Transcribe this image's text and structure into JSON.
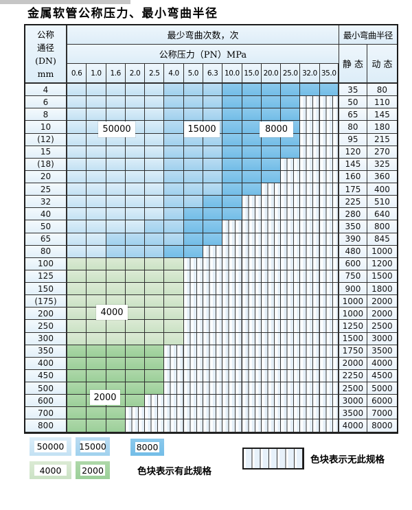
{
  "page": {
    "title": "金属软管公称压力、最小弯曲半径"
  },
  "table": {
    "corner_header": [
      "公称",
      "通径",
      "(DN)",
      "mm"
    ],
    "bend_times_header": "最少弯曲次数，次",
    "bend_radius_header": "最小弯曲半径",
    "pressure_header": "公称压力（PN）MPa",
    "static_header": "静 态",
    "dynamic_header": "动 态",
    "pressure_columns": [
      "0.6",
      "1.0",
      "1.6",
      "2.0",
      "2.5",
      "4.0",
      "5.0",
      "6.3",
      "10.0",
      "15.0",
      "20.0",
      "25.0",
      "32.0",
      "35.0"
    ],
    "zone_codes": {
      "L": "cycles-50000-light-blue",
      "M": "cycles-15000-medium-blue",
      "D": "cycles-8000-dark-blue",
      "g": "cycles-4000-light-green",
      "G": "cycles-2000-dark-green",
      ".": "no-spec-hatched"
    },
    "rows": [
      {
        "dn": "4",
        "static": "35",
        "dynamic": "80",
        "zones": "LLLLLMMMDDDDDD"
      },
      {
        "dn": "6",
        "static": "50",
        "dynamic": "110",
        "zones": "LLLLLMMMDDDD.."
      },
      {
        "dn": "8",
        "static": "65",
        "dynamic": "145",
        "zones": "LLLLLMMMDDDD.."
      },
      {
        "dn": "10",
        "static": "80",
        "dynamic": "180",
        "zones": "LLLLLMMMDDDD.."
      },
      {
        "dn": "(12)",
        "static": "95",
        "dynamic": "215",
        "zones": "LLLLLMMMDDDD.."
      },
      {
        "dn": "15",
        "static": "120",
        "dynamic": "270",
        "zones": "LLLLLMMMDDDD.."
      },
      {
        "dn": "(18)",
        "static": "145",
        "dynamic": "325",
        "zones": "LLLLLMMMDDD..."
      },
      {
        "dn": "20",
        "static": "160",
        "dynamic": "360",
        "zones": "LLLLLMMMDDD..."
      },
      {
        "dn": "25",
        "static": "175",
        "dynamic": "400",
        "zones": "LLLLLMMMDD...."
      },
      {
        "dn": "32",
        "static": "225",
        "dynamic": "510",
        "zones": "LLLLLMMDD....."
      },
      {
        "dn": "40",
        "static": "280",
        "dynamic": "640",
        "zones": "LLLLLMDDD....."
      },
      {
        "dn": "50",
        "static": "350",
        "dynamic": "800",
        "zones": "LLLLMMDD......"
      },
      {
        "dn": "65",
        "static": "390",
        "dynamic": "845",
        "zones": "LLMMMMDD......"
      },
      {
        "dn": "80",
        "static": "480",
        "dynamic": "1000",
        "zones": "LLMMMDD......."
      },
      {
        "dn": "100",
        "static": "600",
        "dynamic": "1200",
        "zones": "gggggg........"
      },
      {
        "dn": "125",
        "static": "750",
        "dynamic": "1500",
        "zones": "gggggg........"
      },
      {
        "dn": "150",
        "static": "900",
        "dynamic": "1800",
        "zones": "gggggg........"
      },
      {
        "dn": "(175)",
        "static": "1000",
        "dynamic": "2000",
        "zones": "gggggg........"
      },
      {
        "dn": "200",
        "static": "1000",
        "dynamic": "2000",
        "zones": "gggggg........"
      },
      {
        "dn": "250",
        "static": "1250",
        "dynamic": "2500",
        "zones": "gggggg........"
      },
      {
        "dn": "300",
        "static": "1500",
        "dynamic": "3000",
        "zones": "gggggg........"
      },
      {
        "dn": "350",
        "static": "1750",
        "dynamic": "3500",
        "zones": "GGGGG........."
      },
      {
        "dn": "400",
        "static": "2000",
        "dynamic": "4000",
        "zones": "GGGGG........."
      },
      {
        "dn": "450",
        "static": "2250",
        "dynamic": "4500",
        "zones": "GGGGG........."
      },
      {
        "dn": "500",
        "static": "2500",
        "dynamic": "5000",
        "zones": "GGGGG........."
      },
      {
        "dn": "600",
        "static": "3000",
        "dynamic": "6000",
        "zones": "GGGG.........."
      },
      {
        "dn": "700",
        "static": "3500",
        "dynamic": "7000",
        "zones": "GGG..........."
      },
      {
        "dn": "800",
        "static": "4000",
        "dynamic": "8000",
        "zones": "GGG..........."
      }
    ],
    "zone_labels": [
      "50000",
      "15000",
      "8000",
      "4000",
      "2000"
    ]
  },
  "legend": {
    "spec_items": [
      {
        "label": "50000",
        "zone": "L"
      },
      {
        "label": "15000",
        "zone": "M"
      },
      {
        "label": "8000",
        "zone": "D"
      },
      {
        "label": "4000",
        "zone": "g"
      },
      {
        "label": "2000",
        "zone": "G"
      }
    ],
    "has_spec_text": "色块表示有此规格",
    "no_spec_text": "色块表示无此规格"
  },
  "colors": {
    "cycles_50000": "#cfe6f6",
    "cycles_15000": "#a9d6f0",
    "cycles_8000": "#7dc3ea",
    "cycles_4000": "#d2e6cc",
    "cycles_2000": "#a2d2a0",
    "grid_line": "#2e2e2e"
  }
}
